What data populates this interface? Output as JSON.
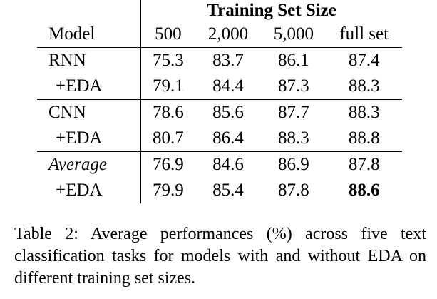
{
  "table": {
    "super_header": "Training Set Size",
    "columns": [
      "Model",
      "500",
      "2,000",
      "5,000",
      "full set"
    ],
    "rows": [
      {
        "model": "RNN",
        "values": [
          "75.3",
          "83.7",
          "86.1",
          "87.4"
        ]
      },
      {
        "model": "+EDA",
        "values": [
          "79.1",
          "84.4",
          "87.3",
          "88.3"
        ]
      },
      {
        "model": "CNN",
        "values": [
          "78.6",
          "85.6",
          "87.7",
          "88.3"
        ]
      },
      {
        "model": "+EDA",
        "values": [
          "80.7",
          "86.4",
          "88.3",
          "88.8"
        ]
      },
      {
        "model": "Average",
        "values": [
          "76.9",
          "84.6",
          "86.9",
          "87.8"
        ]
      },
      {
        "model": "+EDA",
        "values": [
          "79.9",
          "85.4",
          "87.8",
          "88.6"
        ]
      }
    ]
  },
  "caption": "Table 2:  Average performances (%) across five text classification tasks for models with and without EDA on different training set sizes."
}
